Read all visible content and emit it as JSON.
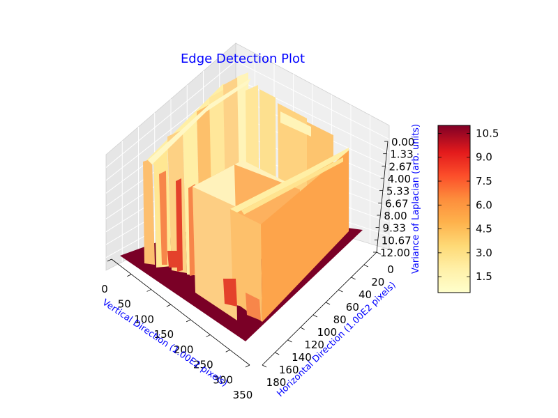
{
  "chart_data": {
    "type": "surface3d",
    "title": "Edge Detection Plot",
    "xlabel": "Vertical Direction (1.00E2 pixels)",
    "ylabel": "Horizontal Direction (1.00E2 pixels)",
    "zlabel": "Variance of Laplacian (arb. units)",
    "x_ticks": [
      "0",
      "50",
      "100",
      "150",
      "200",
      "250",
      "300",
      "350"
    ],
    "y_ticks": [
      "0",
      "20",
      "40",
      "60",
      "80",
      "100",
      "120",
      "140",
      "160",
      "180"
    ],
    "z_ticks": [
      "0.00",
      "1.33",
      "2.67",
      "4.00",
      "5.33",
      "6.67",
      "8.00",
      "9.33",
      "10.67",
      "12.00"
    ],
    "xlim": [
      0,
      350
    ],
    "ylim": [
      0,
      180
    ],
    "zlim": [
      0,
      12
    ],
    "zaxis_inverted": true,
    "colormap": "YlOrRd",
    "colorbar": {
      "ticks": [
        "1.5",
        "3.0",
        "4.5",
        "6.0",
        "7.5",
        "9.0",
        "10.5"
      ],
      "range": [
        0.5,
        11.0
      ]
    },
    "background_value": 11.0,
    "plateau_value": 5.0,
    "grid": true
  },
  "colors": {
    "label": "#0000ff",
    "pane_left": "#e9e9e9",
    "pane_right": "#efefef",
    "floor": "#7a0026",
    "plateau_top": "#fda44b",
    "ridge_light": "#ffefa5",
    "ridge_orange": "#f7864a"
  }
}
